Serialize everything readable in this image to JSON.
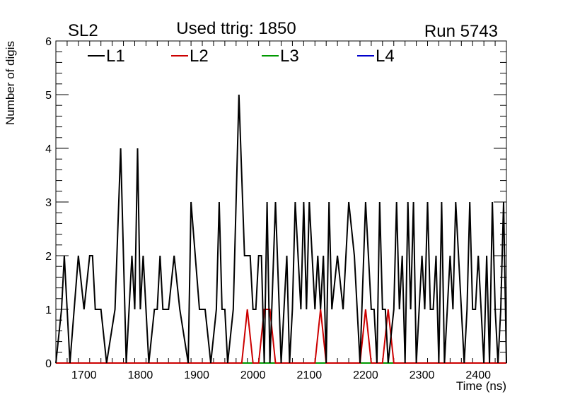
{
  "chart_data": {
    "type": "line",
    "header_left": "SL2",
    "title": "Used ttrig: 1850",
    "header_right": "Run 5743",
    "xlabel": "Time (ns)",
    "ylabel": "Number of digis",
    "xlim": [
      1650,
      2450
    ],
    "ylim": [
      0,
      6
    ],
    "x_ticks": [
      "1700",
      "1800",
      "1900",
      "2000",
      "2100",
      "2200",
      "2300",
      "2400"
    ],
    "y_ticks": [
      "0",
      "1",
      "2",
      "3",
      "4",
      "5",
      "6"
    ],
    "grid": false,
    "legend_position": "top",
    "series": [
      {
        "name": "L1",
        "color": "#000000",
        "x": [
          1650,
          1660,
          1665,
          1675,
          1690,
          1700,
          1710,
          1715,
          1720,
          1730,
          1740,
          1755,
          1765,
          1775,
          1785,
          1790,
          1795,
          1800,
          1805,
          1815,
          1825,
          1830,
          1835,
          1840,
          1850,
          1860,
          1870,
          1885,
          1890,
          1905,
          1915,
          1925,
          1935,
          1940,
          1945,
          1950,
          1955,
          1965,
          1975,
          1985,
          1995,
          2000,
          2005,
          2010,
          2015,
          2020,
          2025,
          2030,
          2040,
          2050,
          2060,
          2065,
          2070,
          2075,
          2080,
          2085,
          2090,
          2095,
          2100,
          2110,
          2115,
          2120,
          2125,
          2130,
          2135,
          2140,
          2150,
          2160,
          2170,
          2180,
          2190,
          2200,
          2210,
          2215,
          2220,
          2225,
          2230,
          2235,
          2240,
          2250,
          2255,
          2260,
          2265,
          2270,
          2275,
          2280,
          2285,
          2290,
          2295,
          2300,
          2305,
          2310,
          2315,
          2320,
          2325,
          2330,
          2335,
          2340,
          2345,
          2350,
          2355,
          2360,
          2365,
          2370,
          2375,
          2380,
          2385,
          2390,
          2395,
          2400,
          2405,
          2410,
          2415,
          2420,
          2425,
          2430,
          2435,
          2440,
          2445,
          2450
        ],
        "values": [
          0,
          1,
          2,
          0,
          2,
          1,
          2,
          2,
          1,
          1,
          0,
          1,
          4,
          0,
          2,
          1,
          4,
          1,
          2,
          0,
          1,
          1,
          2,
          1,
          1,
          2,
          1,
          0,
          3,
          1,
          1,
          0,
          1,
          3,
          1,
          1,
          0,
          1,
          5,
          2,
          2,
          1,
          1,
          2,
          2,
          0,
          3,
          0,
          3,
          0,
          2,
          0,
          1,
          3,
          2,
          1,
          3,
          1,
          3,
          1,
          2,
          1,
          2,
          0,
          3,
          1,
          2,
          1,
          3,
          2,
          0,
          3,
          1,
          1,
          0,
          3,
          1,
          1,
          0,
          1,
          3,
          1,
          2,
          0,
          3,
          1,
          3,
          0,
          1,
          2,
          1,
          3,
          1,
          1,
          2,
          0,
          3,
          0,
          1,
          2,
          1,
          3,
          2,
          1,
          0,
          1,
          3,
          1,
          1,
          2,
          1,
          0,
          2,
          0,
          3,
          1,
          0,
          1,
          3,
          0
        ]
      },
      {
        "name": "L2",
        "color": "#cc0000",
        "x": [
          1650,
          1970,
          1980,
          1990,
          2000,
          2010,
          2020,
          2030,
          2040,
          2100,
          2110,
          2120,
          2130,
          2140,
          2180,
          2190,
          2200,
          2210,
          2220,
          2230,
          2240,
          2250,
          2450
        ],
        "values": [
          0,
          0,
          0,
          1,
          0,
          0,
          1,
          1,
          0,
          0,
          0,
          1,
          0,
          0,
          0,
          0,
          1,
          0,
          0,
          0,
          1,
          0,
          0
        ]
      },
      {
        "name": "L3",
        "color": "#009900",
        "x": [
          1650,
          2450
        ],
        "values": [
          0,
          0
        ]
      },
      {
        "name": "L4",
        "color": "#0000cc",
        "x": [
          1650,
          2450
        ],
        "values": [
          0,
          0
        ]
      }
    ]
  }
}
